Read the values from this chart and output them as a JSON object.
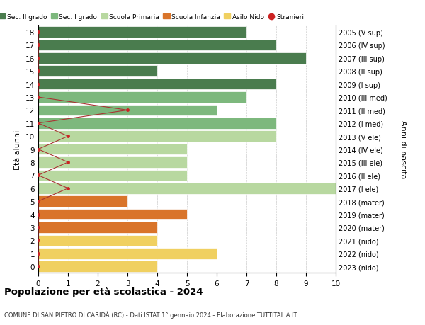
{
  "ages": [
    18,
    17,
    16,
    15,
    14,
    13,
    12,
    11,
    10,
    9,
    8,
    7,
    6,
    5,
    4,
    3,
    2,
    1,
    0
  ],
  "right_labels": [
    "2005 (V sup)",
    "2006 (IV sup)",
    "2007 (III sup)",
    "2008 (II sup)",
    "2009 (I sup)",
    "2010 (III med)",
    "2011 (II med)",
    "2012 (I med)",
    "2013 (V ele)",
    "2014 (IV ele)",
    "2015 (III ele)",
    "2016 (II ele)",
    "2017 (I ele)",
    "2018 (mater)",
    "2019 (mater)",
    "2020 (mater)",
    "2021 (nido)",
    "2022 (nido)",
    "2023 (nido)"
  ],
  "bar_values": [
    7,
    8,
    9,
    4,
    8,
    7,
    6,
    8,
    8,
    5,
    5,
    5,
    10,
    3,
    5,
    4,
    4,
    6,
    4
  ],
  "bar_colors": [
    "#4a7c4e",
    "#4a7c4e",
    "#4a7c4e",
    "#4a7c4e",
    "#4a7c4e",
    "#7db87d",
    "#7db87d",
    "#7db87d",
    "#b8d8a0",
    "#b8d8a0",
    "#b8d8a0",
    "#b8d8a0",
    "#b8d8a0",
    "#d9742a",
    "#d9742a",
    "#d9742a",
    "#f0d060",
    "#f0d060",
    "#f0d060"
  ],
  "stranieri_x": [
    0,
    0,
    0,
    0,
    0,
    0,
    3,
    0,
    1,
    0,
    1,
    0,
    1,
    0,
    0,
    0,
    0,
    0,
    0
  ],
  "legend_labels": [
    "Sec. II grado",
    "Sec. I grado",
    "Scuola Primaria",
    "Scuola Infanzia",
    "Asilo Nido",
    "Stranieri"
  ],
  "legend_colors": [
    "#4a7c4e",
    "#7db87d",
    "#b8d8a0",
    "#d9742a",
    "#f0d060",
    "#cc2222"
  ],
  "title": "Popolazione per età scolastica - 2024",
  "subtitle": "COMUNE DI SAN PIETRO DI CARIDÀ (RC) - Dati ISTAT 1° gennaio 2024 - Elaborazione TUTTITALIA.IT",
  "ylabel_left": "Età alunni",
  "ylabel_right": "Anni di nascita",
  "xlim": [
    0,
    10
  ],
  "background_color": "#ffffff",
  "grid_color": "#cccccc"
}
